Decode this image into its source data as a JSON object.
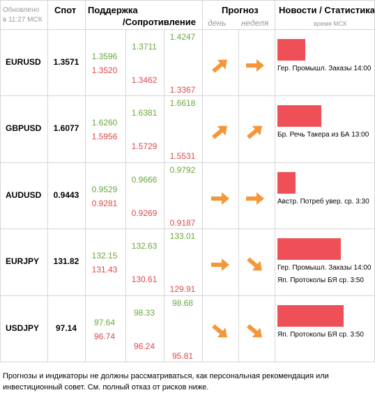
{
  "header": {
    "updated": "Обновлено",
    "updated_time": "в 11:27 МСК",
    "spot": "Спот",
    "support": "Поддержка",
    "resistance": "/Сопротивление",
    "forecast": "Прогноз",
    "day": "день",
    "week": "неделя",
    "news": "Новости / Статистика",
    "news_time": "время МСК"
  },
  "rows": [
    {
      "pair": "EURUSD",
      "spot": "1.3571",
      "levels": [
        [
          "1.3596",
          "1.3520"
        ],
        [
          "1.3711",
          "1.3462"
        ],
        [
          "1.4247",
          "1.3367"
        ]
      ],
      "news": [
        "Гер. Промышл. Заказы 14:00"
      ]
    },
    {
      "pair": "GBPUSD",
      "spot": "1.6077",
      "levels": [
        [
          "1.6260",
          "1.5956"
        ],
        [
          "1.6381",
          "1.5729"
        ],
        [
          "1.6618",
          "1.5531"
        ]
      ],
      "news": [
        "Бр. Речь Такера из БА 13:00"
      ]
    },
    {
      "pair": "AUDUSD",
      "spot": "0.9443",
      "levels": [
        [
          "0.9529",
          "0.9281"
        ],
        [
          "0.9666",
          "0.9269"
        ],
        [
          "0.9792",
          "0.9187"
        ]
      ],
      "news": [
        "Австр. Потреб увер. ср. 3:30"
      ]
    },
    {
      "pair": "EURJPY",
      "spot": "131.82",
      "levels": [
        [
          "132.15",
          "131.43"
        ],
        [
          "132.63",
          "130.61"
        ],
        [
          "133.01",
          "129.91"
        ]
      ],
      "news": [
        "Гер. Промышл. Заказы 14:00",
        "Яп. Протоколы БЯ ср. 3:50"
      ]
    },
    {
      "pair": "USDJPY",
      "spot": "97.14",
      "levels": [
        [
          "97.64",
          "96.74"
        ],
        [
          "98.33",
          "96.24"
        ],
        [
          "98.68",
          "95.81"
        ]
      ],
      "news": [
        "Яп. Протоколы БЯ ср. 3:50"
      ]
    }
  ],
  "footer": "Прогнозы и индикаторы не должны рассматриваться, как персональная рекомендация или инвестиционный совет. См. полный отказ от рисков ниже."
}
